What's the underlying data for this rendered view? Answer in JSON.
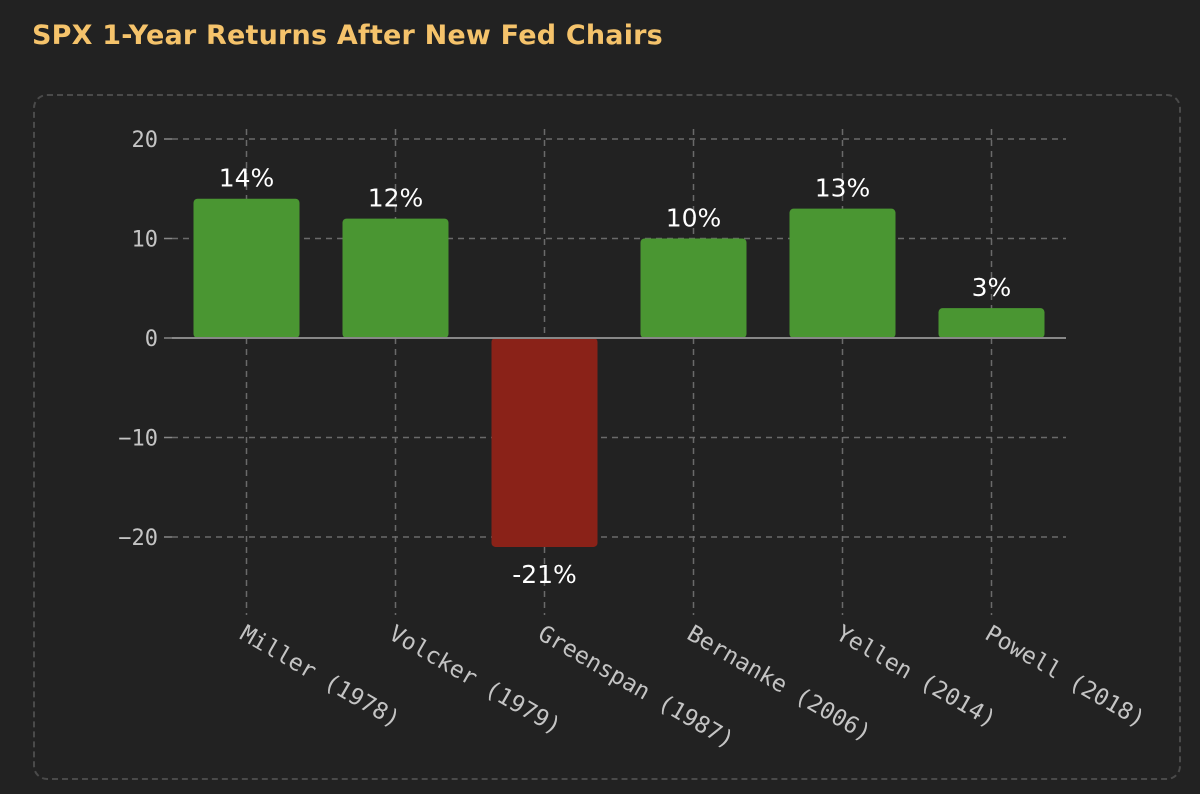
{
  "title": "SPX 1-Year Returns After New Fed Chairs",
  "colors": {
    "title": "#f5c36b",
    "positive": "#4a9632",
    "negative": "#8a2218",
    "grid": "#6a6a6a",
    "zero_line": "#888888",
    "text": "#c4c4c4",
    "label": "#ffffff"
  },
  "chart_data": {
    "type": "bar",
    "categories": [
      "Miller (1978)",
      "Volcker (1979)",
      "Greenspan (1987)",
      "Bernanke (2006)",
      "Yellen (2014)",
      "Powell (2018)"
    ],
    "values": [
      14,
      12,
      -21,
      10,
      13,
      3
    ],
    "data_labels": [
      "14%",
      "12%",
      "-21%",
      "10%",
      "13%",
      "3%"
    ],
    "y_ticks": [
      20,
      10,
      0,
      -10,
      -20
    ],
    "y_tick_labels": [
      "20",
      "10",
      "0",
      "−10",
      "−20"
    ],
    "ylim": [
      -23.5,
      21
    ],
    "grid": true,
    "xlabel": "",
    "ylabel": ""
  }
}
